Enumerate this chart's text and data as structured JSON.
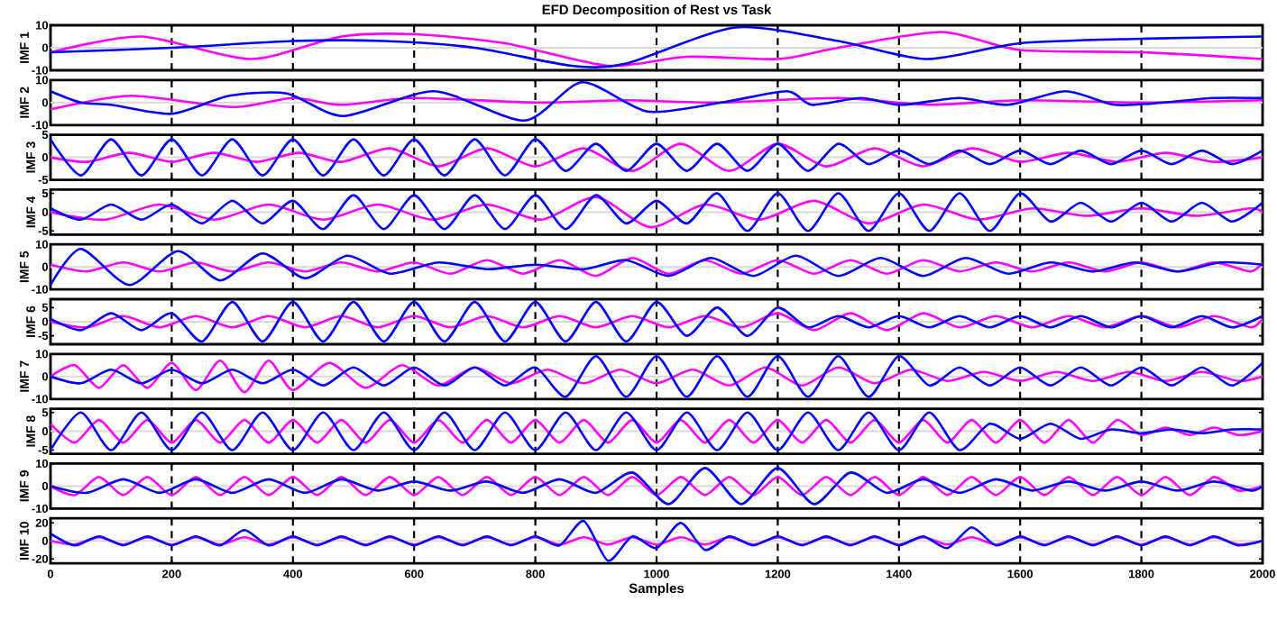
{
  "chart_data": [
    {
      "type": "line",
      "title": "EFD Decomposition of Rest  vs Task",
      "ylabel": "IMF 1",
      "xlim": [
        0,
        2000
      ],
      "xticks": [
        0,
        200,
        400,
        600,
        800,
        1000,
        1200,
        1400,
        1600,
        1800,
        2000
      ],
      "ylim": [
        -10,
        10
      ],
      "yticks": [
        -10,
        0,
        10
      ],
      "grid": "x",
      "tick_labels": "y",
      "ref_lines": [
        {
          "axis": "y",
          "value": 0,
          "color": "#d9d9d9"
        }
      ],
      "series": [
        {
          "color": "#ff00ff",
          "x": [
            0,
            150,
            330,
            480,
            600,
            750,
            920,
            1050,
            1200,
            1300,
            1470,
            1600,
            1800,
            2000
          ],
          "values": [
            -2,
            5,
            -5,
            5,
            6,
            2,
            -8,
            -4,
            -5,
            0,
            7,
            -1,
            -2,
            -5
          ]
        },
        {
          "color": "#0000ff",
          "x": [
            0,
            200,
            400,
            550,
            700,
            860,
            950,
            1130,
            1300,
            1445,
            1600,
            1800,
            2000
          ],
          "values": [
            -2,
            0,
            3,
            3,
            0,
            -8,
            -7,
            9,
            3,
            -5,
            2,
            4,
            5
          ]
        }
      ]
    },
    {
      "type": "line",
      "ylabel": "IMF 2",
      "xlim": [
        0,
        2000
      ],
      "xticks": [
        0,
        200,
        400,
        600,
        800,
        1000,
        1200,
        1400,
        1600,
        1800,
        2000
      ],
      "ylim": [
        -10,
        10
      ],
      "yticks": [
        -10,
        0,
        10
      ],
      "grid": "x",
      "tick_labels": "y",
      "ref_lines": [
        {
          "axis": "y",
          "value": 0,
          "color": "#d9d9d9"
        }
      ],
      "series": [
        {
          "color": "#ff00ff",
          "x": [
            0,
            133,
            300,
            400,
            480,
            600,
            800,
            950,
            1100,
            1300,
            1450,
            1600,
            1800,
            2000
          ],
          "values": [
            -3,
            3,
            -2,
            2,
            -1,
            2,
            0,
            1,
            0,
            2,
            -1,
            1,
            0,
            1
          ]
        },
        {
          "color": "#0000ff",
          "x": [
            0,
            50,
            100,
            200,
            295,
            390,
            484,
            633,
            782,
            877,
            985,
            1107,
            1215,
            1256,
            1337,
            1404,
            1499,
            1580,
            1675,
            1756,
            1837,
            1919,
            2000
          ],
          "values": [
            5,
            0,
            -1,
            -5,
            3,
            4,
            -6,
            5,
            -8,
            9,
            -4,
            0,
            5,
            -1,
            2,
            -1,
            2,
            -1,
            5,
            -1,
            0,
            2,
            2
          ]
        }
      ]
    },
    {
      "type": "line",
      "ylabel": "IMF 3",
      "xlim": [
        0,
        2000
      ],
      "xticks": [
        0,
        200,
        400,
        600,
        800,
        1000,
        1200,
        1400,
        1600,
        1800,
        2000
      ],
      "ylim": [
        -5,
        5
      ],
      "yticks": [
        -5,
        0,
        5
      ],
      "grid": "x",
      "tick_labels": "y",
      "ref_lines": [
        {
          "axis": "y",
          "value": 0,
          "color": "#d9d9d9"
        }
      ],
      "series": [
        {
          "color": "#ff00ff",
          "x": [
            0,
            60,
            130,
            200,
            270,
            340,
            410,
            480,
            560,
            640,
            720,
            800,
            880,
            960,
            1040,
            1120,
            1200,
            1280,
            1360,
            1440,
            1520,
            1600,
            1680,
            1760,
            1840,
            1920,
            2000
          ],
          "values": [
            0,
            -1,
            1,
            -1,
            1,
            -1,
            1,
            -1,
            2,
            -2,
            2,
            -2,
            2,
            -3,
            3,
            -3,
            3,
            -2,
            2,
            -2,
            2,
            -1,
            1,
            -1,
            1,
            -1,
            0
          ]
        },
        {
          "color": "#0000ff",
          "x": [
            0,
            50,
            100,
            150,
            200,
            250,
            300,
            350,
            400,
            450,
            500,
            550,
            600,
            650,
            700,
            750,
            800,
            850,
            900,
            950,
            1000,
            1050,
            1100,
            1150,
            1200,
            1250,
            1300,
            1350,
            1400,
            1450,
            1500,
            1550,
            1600,
            1650,
            1700,
            1750,
            1800,
            1850,
            1900,
            1950,
            2000
          ],
          "values": [
            4,
            -4,
            4,
            -4,
            4,
            -4,
            4,
            -4,
            4,
            -4,
            4,
            -4,
            4,
            -4,
            4,
            -4,
            4,
            -3,
            3,
            -3,
            3,
            -3,
            3,
            -3,
            3,
            -3,
            3,
            -1.5,
            1.5,
            -1.5,
            1.5,
            -1.5,
            1.5,
            -1.5,
            1.5,
            -1.5,
            1.5,
            -1.5,
            1.5,
            -1.5,
            1.5
          ]
        }
      ]
    },
    {
      "type": "line",
      "ylabel": "IMF 4",
      "xlim": [
        0,
        2000
      ],
      "xticks": [
        0,
        200,
        400,
        600,
        800,
        1000,
        1200,
        1400,
        1600,
        1800,
        2000
      ],
      "ylim": [
        -6,
        6
      ],
      "yticks": [
        -5,
        0,
        5
      ],
      "grid": "x",
      "tick_labels": "y",
      "ref_lines": [
        {
          "axis": "y",
          "value": 0,
          "color": "#d9d9d9"
        }
      ],
      "series": [
        {
          "color": "#ff00ff",
          "x": [
            0,
            90,
            180,
            270,
            360,
            450,
            540,
            630,
            720,
            810,
            900,
            990,
            1080,
            1170,
            1260,
            1350,
            1440,
            1530,
            1620,
            1710,
            1800,
            1890,
            1980,
            2000
          ],
          "values": [
            0,
            -2,
            2,
            -2,
            2,
            -2,
            2,
            -2,
            2,
            -2,
            4,
            -4,
            2,
            -2,
            3,
            -3,
            2,
            -2,
            1,
            -1,
            1,
            -1,
            1,
            0
          ]
        },
        {
          "color": "#0000ff",
          "x": [
            0,
            50,
            100,
            150,
            200,
            250,
            300,
            350,
            400,
            450,
            500,
            550,
            600,
            650,
            700,
            750,
            800,
            850,
            900,
            950,
            1000,
            1050,
            1100,
            1150,
            1200,
            1250,
            1300,
            1350,
            1400,
            1450,
            1500,
            1550,
            1600,
            1650,
            1700,
            1750,
            1800,
            1850,
            1900,
            1950,
            2000
          ],
          "values": [
            1,
            -2,
            2,
            -2,
            2,
            -3,
            3,
            -3,
            3,
            -4.5,
            4.5,
            -4.5,
            4.5,
            -4.5,
            4.5,
            -4.5,
            4.5,
            -4.5,
            4.5,
            -3,
            3,
            -3,
            5,
            -5,
            5,
            -5,
            5,
            -5,
            5,
            -5,
            5,
            -5,
            5,
            -2.5,
            2.5,
            -2.5,
            2.5,
            -2.5,
            2.5,
            -2.5,
            2.5
          ]
        }
      ]
    },
    {
      "type": "line",
      "ylabel": "IMF 5",
      "xlim": [
        0,
        2000
      ],
      "xticks": [
        0,
        200,
        400,
        600,
        800,
        1000,
        1200,
        1400,
        1600,
        1800,
        2000
      ],
      "ylim": [
        -10,
        10
      ],
      "yticks": [
        -10,
        0,
        10
      ],
      "grid": "x",
      "tick_labels": "y",
      "ref_lines": [
        {
          "axis": "y",
          "value": 0,
          "color": "#d9d9d9"
        }
      ],
      "series": [
        {
          "color": "#ff00ff",
          "x": [
            0,
            60,
            120,
            180,
            240,
            300,
            360,
            420,
            480,
            540,
            600,
            660,
            720,
            780,
            840,
            900,
            960,
            1020,
            1080,
            1140,
            1200,
            1260,
            1320,
            1380,
            1440,
            1500,
            1560,
            1620,
            1680,
            1740,
            1800,
            1860,
            1920,
            1980,
            2000
          ],
          "values": [
            1,
            -2,
            2,
            -2,
            2,
            -2,
            2,
            -2,
            2,
            -2,
            2,
            -3,
            3,
            -3,
            3,
            -4,
            4,
            -3,
            3,
            -3,
            3,
            -3,
            3,
            -3,
            3,
            -2,
            2,
            -2,
            2,
            -2,
            2,
            -2,
            2,
            -2,
            2
          ]
        },
        {
          "color": "#0000ff",
          "x": [
            0,
            50,
            130,
            210,
            280,
            350,
            420,
            490,
            560,
            640,
            720,
            800,
            880,
            950,
            1020,
            1090,
            1160,
            1230,
            1300,
            1370,
            1440,
            1510,
            1580,
            1650,
            1720,
            1790,
            1860,
            1930,
            2000
          ],
          "values": [
            -8,
            8,
            -8,
            7,
            -6,
            6,
            -5,
            5,
            -3,
            2,
            -1,
            1,
            -1,
            3,
            -4,
            4,
            -4,
            5,
            -4,
            4,
            -4,
            4,
            -3,
            2,
            -2,
            2,
            -2,
            2,
            1
          ]
        }
      ]
    },
    {
      "type": "line",
      "ylabel": "IMF 6",
      "xlim": [
        0,
        2000
      ],
      "xticks": [
        0,
        200,
        400,
        600,
        800,
        1000,
        1200,
        1400,
        1600,
        1800,
        2000
      ],
      "ylim": [
        -8,
        8
      ],
      "yticks": [
        -5,
        0,
        5
      ],
      "grid": "x",
      "tick_labels": "y",
      "ref_lines": [
        {
          "axis": "y",
          "value": 0,
          "color": "#d9d9d9"
        }
      ],
      "series": [
        {
          "color": "#ff00ff",
          "x": [
            0,
            60,
            120,
            180,
            240,
            300,
            360,
            420,
            480,
            540,
            600,
            660,
            720,
            780,
            840,
            900,
            960,
            1020,
            1080,
            1140,
            1200,
            1260,
            1320,
            1380,
            1440,
            1500,
            1560,
            1620,
            1680,
            1740,
            1800,
            1860,
            1920,
            1980,
            2000
          ],
          "values": [
            0,
            -2,
            2,
            -2,
            2,
            -2,
            2,
            -2,
            2,
            -2,
            2,
            -2,
            2,
            -2,
            2,
            -2,
            2,
            -2,
            2,
            -2,
            3,
            -3,
            3,
            -3,
            3,
            -2,
            2,
            -2,
            2,
            -2,
            2,
            -2,
            2,
            -2,
            1
          ]
        },
        {
          "color": "#0000ff",
          "x": [
            0,
            50,
            100,
            150,
            200,
            250,
            300,
            350,
            400,
            450,
            500,
            550,
            600,
            650,
            700,
            750,
            800,
            850,
            900,
            950,
            1000,
            1050,
            1100,
            1150,
            1200,
            1250,
            1300,
            1350,
            1400,
            1450,
            1500,
            1550,
            1600,
            1650,
            1700,
            1750,
            1800,
            1850,
            1900,
            1950,
            2000
          ],
          "values": [
            1,
            -3,
            3,
            -3,
            3,
            -7,
            7,
            -7,
            7,
            -7,
            7,
            -7,
            7,
            -7,
            7,
            -7,
            7,
            -7,
            7,
            -7,
            7,
            -5,
            5,
            -5,
            5,
            -2,
            2,
            -2,
            2,
            -2,
            2,
            -2,
            2,
            -2,
            2,
            -2,
            2,
            -2,
            2,
            -2,
            2
          ]
        }
      ]
    },
    {
      "type": "line",
      "ylabel": "IMF 7",
      "xlim": [
        0,
        2000
      ],
      "xticks": [
        0,
        200,
        400,
        600,
        800,
        1000,
        1200,
        1400,
        1600,
        1800,
        2000
      ],
      "ylim": [
        -10,
        10
      ],
      "yticks": [
        -10,
        0,
        10
      ],
      "grid": "x",
      "tick_labels": "y",
      "ref_lines": [
        {
          "axis": "y",
          "value": 0,
          "color": "#d9d9d9"
        }
      ],
      "series": [
        {
          "color": "#ff00ff",
          "x": [
            0,
            40,
            80,
            120,
            160,
            200,
            240,
            280,
            320,
            360,
            400,
            460,
            520,
            580,
            640,
            700,
            760,
            820,
            880,
            940,
            1000,
            1060,
            1120,
            1180,
            1240,
            1300,
            1360,
            1420,
            1480,
            1540,
            1600,
            1660,
            1720,
            1780,
            1840,
            1900,
            1960,
            2000
          ],
          "values": [
            0,
            5,
            -5,
            5,
            -5,
            6,
            -6,
            7,
            -7,
            7,
            -6,
            6,
            -5,
            5,
            -4,
            4,
            -3,
            3,
            -3,
            3,
            -3,
            3,
            -4,
            4,
            -4,
            4,
            -3,
            3,
            -2,
            2,
            -2,
            2,
            -2,
            2,
            -2,
            2,
            -2,
            0
          ]
        },
        {
          "color": "#0000ff",
          "x": [
            0,
            50,
            100,
            150,
            200,
            250,
            300,
            350,
            400,
            450,
            500,
            550,
            600,
            650,
            700,
            750,
            800,
            850,
            900,
            950,
            1000,
            1050,
            1100,
            1150,
            1200,
            1250,
            1300,
            1350,
            1400,
            1450,
            1500,
            1550,
            1600,
            1650,
            1700,
            1750,
            1800,
            1850,
            1900,
            1950,
            2000
          ],
          "values": [
            0,
            -3,
            3,
            -3,
            3,
            -3,
            3,
            -3,
            3,
            -4,
            4,
            -4,
            4,
            -4,
            4,
            -4,
            4,
            -9,
            9,
            -9,
            9,
            -9,
            9,
            -9,
            9,
            -9,
            9,
            -9,
            9,
            -4,
            4,
            -4,
            4,
            -4,
            4,
            -4,
            4,
            -4,
            4,
            -4,
            6
          ]
        }
      ]
    },
    {
      "type": "line",
      "ylabel": "IMF 8",
      "xlim": [
        0,
        2000
      ],
      "xticks": [
        0,
        200,
        400,
        600,
        800,
        1000,
        1200,
        1400,
        1600,
        1800,
        2000
      ],
      "ylim": [
        -6,
        6
      ],
      "yticks": [
        -5,
        0,
        5
      ],
      "grid": "x",
      "tick_labels": "y",
      "ref_lines": [
        {
          "axis": "y",
          "value": 0,
          "color": "#d9d9d9"
        }
      ],
      "series": [
        {
          "color": "#ff00ff",
          "x": [
            0,
            40,
            80,
            120,
            160,
            200,
            240,
            280,
            320,
            360,
            400,
            440,
            480,
            520,
            560,
            600,
            640,
            680,
            720,
            760,
            800,
            840,
            880,
            920,
            960,
            1000,
            1040,
            1080,
            1120,
            1160,
            1200,
            1240,
            1280,
            1320,
            1360,
            1400,
            1440,
            1480,
            1520,
            1560,
            1600,
            1640,
            1680,
            1720,
            1760,
            1800,
            1840,
            1880,
            1920,
            1960,
            2000
          ],
          "values": [
            2,
            -3,
            3,
            -3,
            3,
            -3,
            3,
            -3,
            3,
            -3,
            3,
            -3,
            3,
            -3,
            3,
            -3,
            3,
            -3,
            3,
            -3,
            3,
            -3,
            3,
            -3,
            3,
            -3,
            3,
            -3,
            3,
            -3,
            3,
            -3,
            3,
            -3,
            3,
            -3,
            3,
            -3,
            3,
            -3,
            3,
            -3,
            3,
            -3,
            3,
            -1,
            1,
            -1,
            1,
            -1,
            0
          ]
        },
        {
          "color": "#0000ff",
          "x": [
            0,
            50,
            100,
            150,
            200,
            250,
            300,
            350,
            400,
            450,
            500,
            550,
            600,
            650,
            700,
            750,
            800,
            850,
            900,
            950,
            1000,
            1050,
            1100,
            1150,
            1200,
            1250,
            1300,
            1350,
            1400,
            1450,
            1500,
            1550,
            1600,
            1650,
            1700,
            1750,
            1800,
            1850,
            1900,
            1950,
            2000
          ],
          "values": [
            -5,
            5,
            -5,
            5,
            -5,
            5,
            -5,
            5,
            -5,
            5,
            -5,
            5,
            -5,
            5,
            -5,
            5,
            -5,
            5,
            -5,
            5,
            -5,
            5,
            -5,
            5,
            -5,
            5,
            -5,
            5,
            -5,
            5,
            -5,
            2,
            -2,
            2,
            -2,
            0.5,
            -0.5,
            0.5,
            -0.5,
            0.5,
            0.5
          ]
        }
      ]
    },
    {
      "type": "line",
      "ylabel": "IMF 9",
      "xlim": [
        0,
        2000
      ],
      "xticks": [
        0,
        200,
        400,
        600,
        800,
        1000,
        1200,
        1400,
        1600,
        1800,
        2000
      ],
      "ylim": [
        -10,
        10
      ],
      "yticks": [
        -10,
        0,
        10
      ],
      "grid": "x",
      "tick_labels": "y",
      "ref_lines": [
        {
          "axis": "y",
          "value": 0,
          "color": "#d9d9d9"
        }
      ],
      "series": [
        {
          "color": "#ff00ff",
          "x": [
            0,
            40,
            80,
            120,
            160,
            200,
            240,
            280,
            320,
            360,
            400,
            440,
            480,
            520,
            560,
            600,
            640,
            680,
            720,
            760,
            800,
            840,
            880,
            920,
            960,
            1000,
            1040,
            1080,
            1120,
            1160,
            1200,
            1240,
            1280,
            1320,
            1360,
            1400,
            1440,
            1480,
            1520,
            1560,
            1600,
            1640,
            1680,
            1720,
            1760,
            1800,
            1840,
            1880,
            1920,
            1960,
            2000
          ],
          "values": [
            0,
            -4,
            4,
            -4,
            4,
            -4,
            4,
            -4,
            4,
            -4,
            4,
            -4,
            4,
            -4,
            4,
            -4,
            4,
            -4,
            4,
            -4,
            4,
            -4,
            4,
            -4,
            4,
            -4,
            4,
            -4,
            4,
            -4,
            4,
            -4,
            4,
            -4,
            4,
            -4,
            4,
            -4,
            4,
            -4,
            4,
            -4,
            4,
            -4,
            4,
            -4,
            4,
            -4,
            4,
            -2,
            0
          ]
        },
        {
          "color": "#0000ff",
          "x": [
            0,
            60,
            120,
            180,
            240,
            300,
            360,
            420,
            480,
            540,
            600,
            660,
            720,
            780,
            840,
            900,
            960,
            1020,
            1080,
            1140,
            1200,
            1260,
            1320,
            1380,
            1440,
            1500,
            1560,
            1620,
            1680,
            1740,
            1800,
            1860,
            1920,
            1980,
            2000
          ],
          "values": [
            0,
            -3,
            3,
            -3,
            3,
            -3,
            3,
            -3,
            3,
            -2,
            2,
            -2,
            2,
            -3,
            3,
            -3,
            6,
            -8,
            8,
            -8,
            8,
            -8,
            6,
            -3,
            3,
            -3,
            3,
            -2,
            2,
            -2,
            2,
            -2,
            2,
            -2,
            0
          ]
        }
      ]
    },
    {
      "type": "line",
      "ylabel": "IMF 10",
      "xlabel": "Samples",
      "xlim": [
        0,
        2000
      ],
      "xticks": [
        0,
        200,
        400,
        600,
        800,
        1000,
        1200,
        1400,
        1600,
        1800,
        2000
      ],
      "ylim": [
        -25,
        25
      ],
      "yticks": [
        -20,
        0,
        20
      ],
      "grid": "x",
      "ref_lines": [
        {
          "axis": "y",
          "value": 0,
          "color": "#d9d9d9"
        }
      ],
      "series": [
        {
          "color": "#ff00ff",
          "x": [
            0,
            40,
            80,
            120,
            160,
            200,
            240,
            280,
            320,
            360,
            400,
            440,
            480,
            520,
            560,
            600,
            640,
            680,
            720,
            760,
            800,
            840,
            880,
            920,
            960,
            1000,
            1040,
            1080,
            1120,
            1160,
            1200,
            1240,
            1280,
            1320,
            1360,
            1400,
            1440,
            1480,
            1520,
            1560,
            1600,
            1640,
            1680,
            1720,
            1760,
            1800,
            1840,
            1880,
            1920,
            1960,
            2000
          ],
          "values": [
            0,
            -4,
            4,
            -4,
            4,
            -4,
            4,
            -4,
            4,
            -4,
            4,
            -4,
            4,
            -4,
            4,
            -4,
            4,
            -4,
            4,
            -4,
            4,
            -4,
            4,
            -4,
            4,
            -4,
            4,
            -4,
            4,
            -4,
            4,
            -4,
            4,
            -4,
            4,
            -4,
            4,
            -4,
            4,
            -4,
            4,
            -4,
            4,
            -4,
            4,
            -4,
            4,
            -4,
            4,
            -4,
            0
          ]
        },
        {
          "color": "#0000ff",
          "x": [
            0,
            40,
            80,
            120,
            160,
            200,
            240,
            280,
            320,
            360,
            400,
            440,
            480,
            520,
            560,
            600,
            640,
            680,
            720,
            760,
            800,
            840,
            880,
            920,
            960,
            1000,
            1040,
            1080,
            1120,
            1160,
            1200,
            1240,
            1280,
            1320,
            1360,
            1400,
            1440,
            1480,
            1520,
            1560,
            1600,
            1640,
            1680,
            1720,
            1760,
            1800,
            1840,
            1880,
            1920,
            1960,
            2000
          ],
          "values": [
            8,
            -5,
            5,
            -5,
            5,
            -5,
            5,
            -5,
            12,
            -5,
            5,
            -5,
            5,
            -5,
            5,
            -5,
            5,
            -5,
            5,
            -5,
            5,
            -5,
            22,
            -22,
            5,
            -8,
            20,
            -10,
            5,
            -5,
            5,
            -5,
            5,
            -5,
            5,
            -5,
            5,
            -8,
            15,
            -5,
            5,
            -5,
            5,
            -5,
            5,
            -5,
            5,
            -5,
            5,
            -5,
            0
          ]
        }
      ]
    }
  ]
}
